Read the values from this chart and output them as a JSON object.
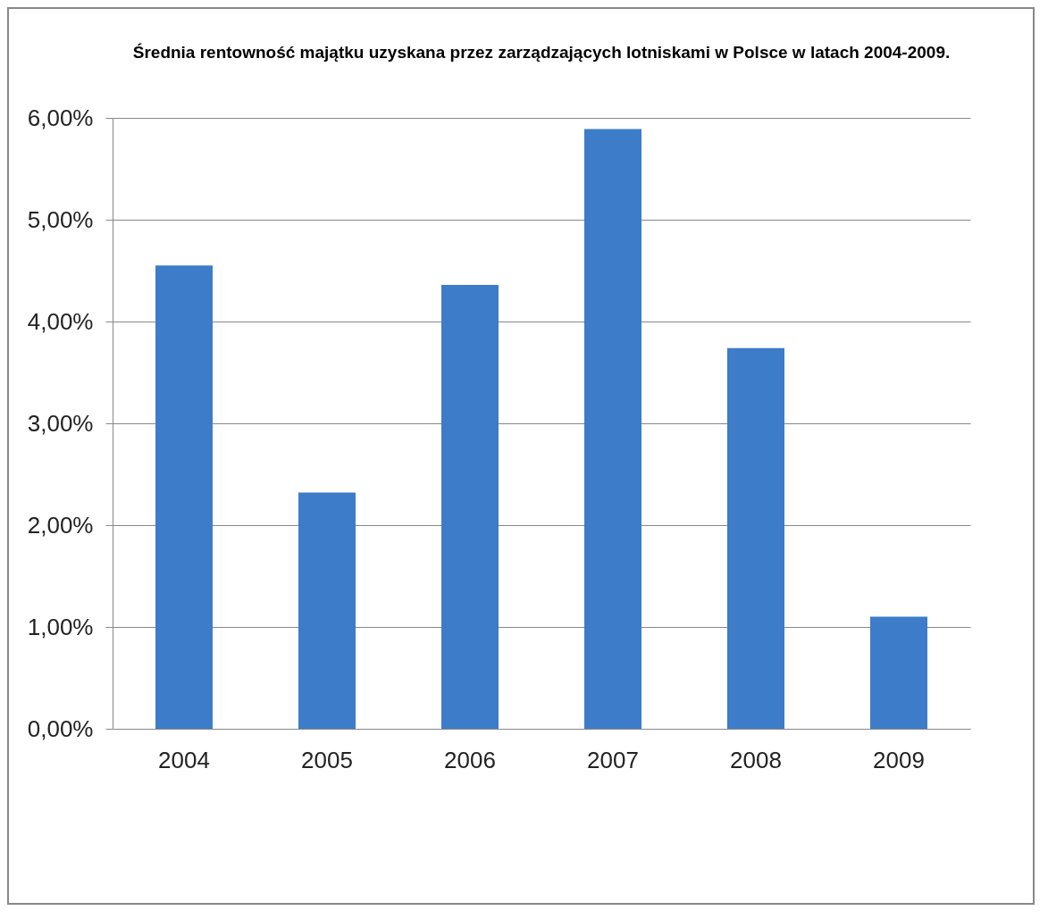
{
  "chart_data": {
    "type": "bar",
    "title": "Średnia rentowność majątku uzyskana przez zarządzających lotniskami w Polsce w latach 2004-2009.",
    "categories": [
      "2004",
      "2005",
      "2006",
      "2007",
      "2008",
      "2009"
    ],
    "values": [
      4.55,
      2.32,
      4.36,
      5.89,
      3.74,
      1.1
    ],
    "color": "#3d7cc9",
    "ylim": [
      0,
      6
    ],
    "yticks": [
      {
        "value": 0,
        "label": "0,00%"
      },
      {
        "value": 1,
        "label": "1,00%"
      },
      {
        "value": 2,
        "label": "2,00%"
      },
      {
        "value": 3,
        "label": "3,00%"
      },
      {
        "value": 4,
        "label": "4,00%"
      },
      {
        "value": 5,
        "label": "5,00%"
      },
      {
        "value": 6,
        "label": "6,00%"
      }
    ],
    "grid": "y"
  }
}
